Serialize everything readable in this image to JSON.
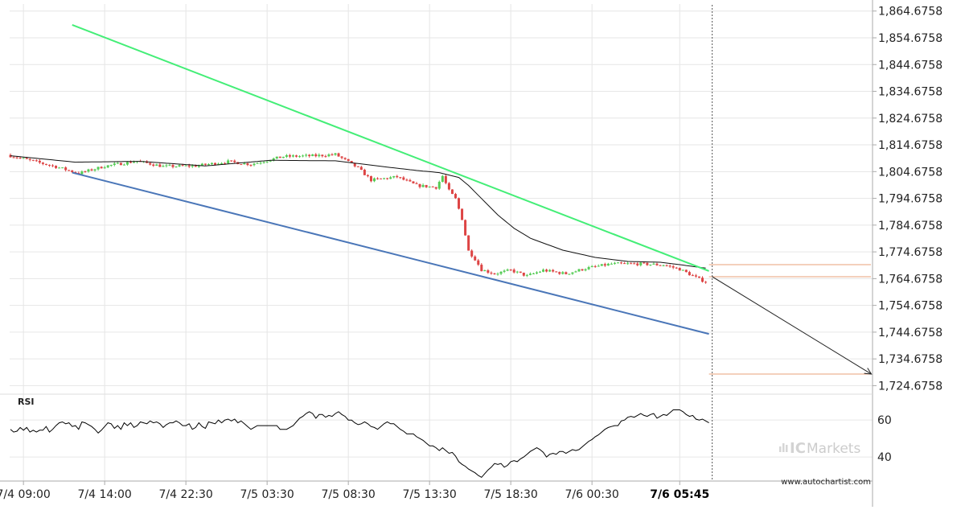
{
  "chart_data": {
    "type": "candlestick",
    "price_axis": {
      "ticks": [
        "1,864.6758",
        "1,854.6758",
        "1,844.6758",
        "1,834.6758",
        "1,824.6758",
        "1,814.6758",
        "1,804.6758",
        "1,794.6758",
        "1,784.6758",
        "1,774.6758",
        "1,764.6758",
        "1,754.6758",
        "1,744.6758",
        "1,734.6758",
        "1,724.6758"
      ],
      "tick_values": [
        1864.6758,
        1854.6758,
        1844.6758,
        1834.6758,
        1824.6758,
        1814.6758,
        1804.6758,
        1794.6758,
        1784.6758,
        1774.6758,
        1764.6758,
        1754.6758,
        1744.6758,
        1734.6758,
        1724.6758
      ],
      "ylim": [
        1721.5,
        1867.3
      ]
    },
    "time_axis": {
      "labels": [
        "7/4 09:00",
        "7/4 14:00",
        "7/4 22:30",
        "7/5 03:30",
        "7/5 08:30",
        "7/5 13:30",
        "7/5 18:30",
        "7/6 00:30",
        "7/6 05:45"
      ],
      "label_bars": [
        4,
        29,
        54,
        79,
        104,
        129,
        154,
        179,
        206
      ],
      "highlighted": "7/6 05:45",
      "bar_count": 215
    },
    "price_path": [
      [
        0,
        1810.9
      ],
      [
        15,
        1806.5
      ],
      [
        22,
        1804.0
      ],
      [
        30,
        1806.7
      ],
      [
        40,
        1808.6
      ],
      [
        48,
        1806.6
      ],
      [
        58,
        1806.8
      ],
      [
        68,
        1808.4
      ],
      [
        75,
        1807.4
      ],
      [
        85,
        1810.3
      ],
      [
        95,
        1810.6
      ],
      [
        101,
        1811.1
      ],
      [
        104,
        1809.0
      ],
      [
        108,
        1806.0
      ],
      [
        112,
        1801.5
      ],
      [
        120,
        1802.7
      ],
      [
        126,
        1799.5
      ],
      [
        132,
        1798.8
      ],
      [
        134,
        1803.0
      ],
      [
        136,
        1797.5
      ],
      [
        138,
        1794.5
      ],
      [
        140,
        1787.0
      ],
      [
        142,
        1775.0
      ],
      [
        144,
        1772.0
      ],
      [
        146,
        1768.0
      ],
      [
        150,
        1766.5
      ],
      [
        155,
        1767.8
      ],
      [
        160,
        1765.7
      ],
      [
        165,
        1767.8
      ],
      [
        172,
        1766.5
      ],
      [
        178,
        1768.5
      ],
      [
        186,
        1770.2
      ],
      [
        194,
        1770.2
      ],
      [
        202,
        1769.8
      ],
      [
        207,
        1768.2
      ],
      [
        213,
        1764.5
      ],
      [
        215,
        1763.5
      ]
    ],
    "moving_average": [
      [
        0,
        1810.6
      ],
      [
        20,
        1808.2
      ],
      [
        40,
        1808.5
      ],
      [
        60,
        1806.8
      ],
      [
        80,
        1808.9
      ],
      [
        100,
        1808.7
      ],
      [
        115,
        1806.5
      ],
      [
        125,
        1805.1
      ],
      [
        132,
        1804.3
      ],
      [
        138,
        1802.5
      ],
      [
        141,
        1799.5
      ],
      [
        145,
        1794.6
      ],
      [
        150,
        1788.5
      ],
      [
        155,
        1783.5
      ],
      [
        160,
        1779.8
      ],
      [
        170,
        1775.3
      ],
      [
        180,
        1772.6
      ],
      [
        190,
        1771.1
      ],
      [
        200,
        1770.8
      ],
      [
        206,
        1769.9
      ],
      [
        214,
        1768.6
      ]
    ],
    "trendlines": [
      {
        "name": "resistance",
        "color": "#44ee77",
        "from": [
          19,
          1859.5
        ],
        "to": [
          215,
          1767.5
        ]
      },
      {
        "name": "support",
        "color": "#4a76b8",
        "from": [
          19,
          1804.3
        ],
        "to": [
          215,
          1744.0
        ]
      }
    ],
    "projection": {
      "color": "#222222",
      "from": [
        216,
        1765.4
      ],
      "to": [
        265,
        1729.0
      ]
    },
    "levels": [
      {
        "name": "upper",
        "value": 1769.9,
        "color": "#e8a07a"
      },
      {
        "name": "lower",
        "value": 1765.4,
        "color": "#e8a07a"
      },
      {
        "name": "target",
        "value": 1729.0,
        "color": "#e8a07a"
      }
    ],
    "current_bar": 216,
    "rsi": {
      "title": "RSI",
      "ticks": [
        "60",
        "40"
      ],
      "tick_values": [
        60,
        40
      ],
      "ylim": [
        27,
        74
      ],
      "path": [
        [
          0,
          55.0
        ],
        [
          1,
          53.5
        ],
        [
          2,
          54.0
        ],
        [
          3,
          56.0
        ],
        [
          4,
          54.5
        ],
        [
          5,
          56.0
        ],
        [
          6,
          53.5
        ],
        [
          7,
          54.5
        ],
        [
          8,
          53.5
        ],
        [
          9,
          54.5
        ],
        [
          10,
          54.5
        ],
        [
          11,
          56.5
        ],
        [
          12,
          53.5
        ],
        [
          13,
          55.0
        ],
        [
          14,
          57.0
        ],
        [
          15,
          58.5
        ],
        [
          16,
          59.0
        ],
        [
          17,
          58.0
        ],
        [
          18,
          58.5
        ],
        [
          19,
          56.5
        ],
        [
          20,
          57.0
        ],
        [
          21,
          55.0
        ],
        [
          22,
          59.0
        ],
        [
          23,
          58.5
        ],
        [
          24,
          57.5
        ],
        [
          25,
          56.5
        ],
        [
          26,
          55.0
        ],
        [
          27,
          53.0
        ],
        [
          28,
          54.5
        ],
        [
          29,
          56.5
        ],
        [
          30,
          58.5
        ],
        [
          31,
          58.0
        ],
        [
          32,
          55.5
        ],
        [
          33,
          57.0
        ],
        [
          34,
          55.0
        ],
        [
          35,
          58.5
        ],
        [
          36,
          57.0
        ],
        [
          37,
          58.5
        ],
        [
          38,
          56.0
        ],
        [
          39,
          57.0
        ],
        [
          40,
          59.0
        ],
        [
          41,
          58.5
        ],
        [
          42,
          58.0
        ],
        [
          43,
          59.5
        ],
        [
          44,
          58.5
        ],
        [
          45,
          59.0
        ],
        [
          46,
          58.0
        ],
        [
          47,
          56.0
        ],
        [
          48,
          57.5
        ],
        [
          49,
          58.5
        ],
        [
          50,
          58.5
        ],
        [
          51,
          59.5
        ],
        [
          52,
          58.5
        ],
        [
          53,
          57.0
        ],
        [
          54,
          57.0
        ],
        [
          55,
          58.0
        ],
        [
          56,
          55.0
        ],
        [
          57,
          56.0
        ],
        [
          58,
          58.5
        ],
        [
          59,
          56.5
        ],
        [
          60,
          55.5
        ],
        [
          61,
          59.0
        ],
        [
          62,
          58.5
        ],
        [
          63,
          58.0
        ],
        [
          64,
          60.0
        ],
        [
          65,
          58.5
        ],
        [
          66,
          60.0
        ],
        [
          67,
          60.5
        ],
        [
          68,
          59.5
        ],
        [
          69,
          60.5
        ],
        [
          70,
          58.5
        ],
        [
          71,
          59.5
        ],
        [
          72,
          58.0
        ],
        [
          73,
          56.5
        ],
        [
          74,
          55.0
        ],
        [
          75,
          56.0
        ],
        [
          76,
          57.0
        ],
        [
          77,
          57.0
        ],
        [
          78,
          57.0
        ],
        [
          79,
          57.0
        ],
        [
          80,
          57.0
        ],
        [
          81,
          57.0
        ],
        [
          82,
          57.0
        ],
        [
          83,
          55.0
        ],
        [
          84,
          55.0
        ],
        [
          85,
          55.0
        ],
        [
          86,
          56.0
        ],
        [
          87,
          57.0
        ],
        [
          88,
          59.0
        ],
        [
          89,
          61.0
        ],
        [
          90,
          62.0
        ],
        [
          91,
          63.5
        ],
        [
          92,
          64.5
        ],
        [
          93,
          63.5
        ],
        [
          94,
          61.0
        ],
        [
          95,
          63.0
        ],
        [
          96,
          63.0
        ],
        [
          97,
          61.5
        ],
        [
          98,
          62.5
        ],
        [
          99,
          62.0
        ],
        [
          100,
          63.5
        ],
        [
          101,
          64.5
        ],
        [
          102,
          63.0
        ],
        [
          103,
          62.0
        ],
        [
          104,
          60.0
        ],
        [
          105,
          60.0
        ],
        [
          106,
          58.5
        ],
        [
          107,
          57.5
        ],
        [
          108,
          58.0
        ],
        [
          109,
          59.0
        ],
        [
          110,
          58.0
        ],
        [
          111,
          56.5
        ],
        [
          112,
          56.0
        ],
        [
          113,
          55.0
        ],
        [
          114,
          56.5
        ],
        [
          115,
          58.0
        ],
        [
          116,
          59.0
        ],
        [
          117,
          58.0
        ],
        [
          118,
          58.0
        ],
        [
          119,
          56.5
        ],
        [
          120,
          55.0
        ],
        [
          121,
          54.0
        ],
        [
          122,
          52.5
        ],
        [
          123,
          52.5
        ],
        [
          124,
          52.5
        ],
        [
          125,
          51.0
        ],
        [
          126,
          50.0
        ],
        [
          127,
          49.0
        ],
        [
          128,
          47.5
        ],
        [
          129,
          46.0
        ],
        [
          130,
          46.0
        ],
        [
          131,
          45.0
        ],
        [
          132,
          43.5
        ],
        [
          133,
          45.0
        ],
        [
          134,
          43.5
        ],
        [
          135,
          42.0
        ],
        [
          136,
          42.5
        ],
        [
          137,
          40.5
        ],
        [
          138,
          37.5
        ],
        [
          139,
          36.0
        ],
        [
          140,
          35.0
        ],
        [
          141,
          33.5
        ],
        [
          142,
          32.5
        ],
        [
          143,
          31.5
        ],
        [
          144,
          30.0
        ],
        [
          145,
          29.0
        ],
        [
          146,
          31.0
        ],
        [
          147,
          33.0
        ],
        [
          148,
          34.5
        ],
        [
          149,
          36.5
        ],
        [
          150,
          36.0
        ],
        [
          151,
          36.5
        ],
        [
          152,
          34.5
        ],
        [
          153,
          35.5
        ],
        [
          154,
          37.5
        ],
        [
          155,
          38.0
        ],
        [
          156,
          37.5
        ],
        [
          157,
          39.0
        ],
        [
          158,
          40.0
        ],
        [
          159,
          41.5
        ],
        [
          160,
          43.0
        ],
        [
          161,
          44.0
        ],
        [
          162,
          45.0
        ],
        [
          163,
          44.0
        ],
        [
          164,
          42.5
        ],
        [
          165,
          40.0
        ],
        [
          166,
          41.5
        ],
        [
          167,
          42.0
        ],
        [
          168,
          41.5
        ],
        [
          169,
          43.0
        ],
        [
          170,
          43.0
        ],
        [
          171,
          42.0
        ],
        [
          172,
          43.0
        ],
        [
          173,
          44.0
        ],
        [
          174,
          43.5
        ],
        [
          175,
          44.0
        ],
        [
          176,
          45.5
        ],
        [
          177,
          47.0
        ],
        [
          178,
          48.5
        ],
        [
          179,
          49.5
        ],
        [
          180,
          51.0
        ],
        [
          181,
          52.0
        ],
        [
          182,
          53.5
        ],
        [
          183,
          55.0
        ],
        [
          184,
          56.0
        ],
        [
          185,
          56.5
        ],
        [
          186,
          57.0
        ],
        [
          187,
          57.0
        ],
        [
          188,
          59.5
        ],
        [
          189,
          60.0
        ],
        [
          190,
          61.5
        ],
        [
          191,
          62.0
        ],
        [
          192,
          61.5
        ],
        [
          193,
          62.5
        ],
        [
          194,
          63.5
        ],
        [
          195,
          62.5
        ],
        [
          196,
          62.0
        ],
        [
          197,
          63.0
        ],
        [
          198,
          63.5
        ],
        [
          199,
          61.0
        ],
        [
          200,
          62.0
        ],
        [
          201,
          63.0
        ],
        [
          202,
          62.5
        ],
        [
          203,
          64.0
        ],
        [
          204,
          65.5
        ],
        [
          205,
          65.5
        ],
        [
          206,
          65.5
        ],
        [
          207,
          64.5
        ],
        [
          208,
          63.0
        ],
        [
          209,
          62.0
        ],
        [
          210,
          62.5
        ],
        [
          211,
          60.5
        ],
        [
          212,
          60.0
        ],
        [
          213,
          60.5
        ],
        [
          214,
          59.5
        ],
        [
          215,
          58.5
        ]
      ]
    }
  },
  "branding": {
    "broker_prefix": "IC",
    "broker_name": "Markets",
    "site": "www.autochartist.com"
  },
  "colors": {
    "bullish": "#55cc55",
    "bearish": "#dd4444",
    "grid": "#e6e6e6",
    "axis": "#aaaaaa",
    "ma_line": "#111111"
  }
}
